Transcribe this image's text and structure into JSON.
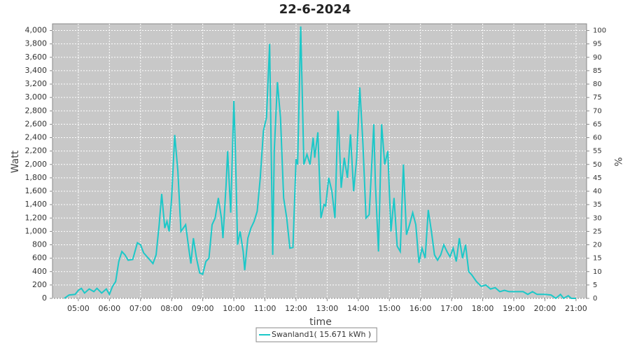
{
  "chart_data": {
    "type": "line",
    "title": "22-6-2024",
    "x_label": "time",
    "y_label": "Watt",
    "y2_label": "%",
    "xlim": [
      4.17,
      21.34
    ],
    "ylim": [
      0,
      4100
    ],
    "y2lim": [
      0,
      102.5
    ],
    "grid": true,
    "legend": "bottom",
    "xticks": [
      {
        "value": 5,
        "label": "05:00"
      },
      {
        "value": 6,
        "label": "06:00"
      },
      {
        "value": 7,
        "label": "07:00"
      },
      {
        "value": 8,
        "label": "08:00"
      },
      {
        "value": 9,
        "label": "09:00"
      },
      {
        "value": 10,
        "label": "10:00"
      },
      {
        "value": 11,
        "label": "11:00"
      },
      {
        "value": 12,
        "label": "12:00"
      },
      {
        "value": 13,
        "label": "13:00"
      },
      {
        "value": 14,
        "label": "14:00"
      },
      {
        "value": 15,
        "label": "15:00"
      },
      {
        "value": 16,
        "label": "16:00"
      },
      {
        "value": 17,
        "label": "17:00"
      },
      {
        "value": 18,
        "label": "18:00"
      },
      {
        "value": 19,
        "label": "19:00"
      },
      {
        "value": 20,
        "label": "20:00"
      },
      {
        "value": 21,
        "label": "21:00"
      }
    ],
    "yticks": [
      0,
      200,
      400,
      600,
      800,
      {
        "value": 1000,
        "label": "1,000"
      },
      {
        "value": 1200,
        "label": "1,200"
      },
      {
        "value": 1400,
        "label": "1,400"
      },
      {
        "value": 1600,
        "label": "1,600"
      },
      {
        "value": 1800,
        "label": "1,800"
      },
      {
        "value": 2000,
        "label": "2,000"
      },
      {
        "value": 2200,
        "label": "2,200"
      },
      {
        "value": 2400,
        "label": "2,400"
      },
      {
        "value": 2600,
        "label": "2,600"
      },
      {
        "value": 2800,
        "label": "2,800"
      },
      {
        "value": 3000,
        "label": "3,000"
      },
      {
        "value": 3200,
        "label": "3,200"
      },
      {
        "value": 3400,
        "label": "3,400"
      },
      {
        "value": 3600,
        "label": "3,600"
      },
      {
        "value": 3800,
        "label": "3,800"
      },
      {
        "value": 4000,
        "label": "4,000"
      }
    ],
    "y2ticks": [
      0,
      5,
      10,
      15,
      20,
      25,
      30,
      35,
      40,
      45,
      50,
      55,
      60,
      65,
      70,
      75,
      80,
      85,
      90,
      95,
      100
    ],
    "x": [
      4.55,
      4.7,
      4.9,
      5.0,
      5.1,
      5.2,
      5.35,
      5.5,
      5.6,
      5.75,
      5.9,
      6.0,
      6.1,
      6.2,
      6.3,
      6.4,
      6.5,
      6.6,
      6.75,
      6.9,
      7.0,
      7.1,
      7.25,
      7.4,
      7.5,
      7.6,
      7.68,
      7.78,
      7.85,
      7.92,
      8.0,
      8.1,
      8.2,
      8.3,
      8.45,
      8.55,
      8.62,
      8.7,
      8.8,
      8.9,
      9.0,
      9.1,
      9.2,
      9.3,
      9.4,
      9.5,
      9.6,
      9.65,
      9.75,
      9.8,
      9.9,
      10.0,
      10.05,
      10.12,
      10.2,
      10.3,
      10.35,
      10.45,
      10.55,
      10.65,
      10.75,
      10.85,
      10.95,
      11.05,
      11.15,
      11.25,
      11.3,
      11.4,
      11.5,
      11.6,
      11.7,
      11.8,
      11.9,
      12.0,
      12.05,
      12.15,
      12.25,
      12.35,
      12.45,
      12.55,
      12.6,
      12.7,
      12.8,
      12.9,
      12.95,
      13.05,
      13.15,
      13.25,
      13.35,
      13.45,
      13.55,
      13.65,
      13.75,
      13.85,
      13.95,
      14.05,
      14.15,
      14.25,
      14.35,
      14.5,
      14.55,
      14.65,
      14.75,
      14.85,
      14.95,
      15.05,
      15.15,
      15.25,
      15.35,
      15.45,
      15.55,
      15.65,
      15.75,
      15.85,
      15.95,
      16.05,
      16.15,
      16.25,
      16.35,
      16.45,
      16.55,
      16.65,
      16.75,
      16.85,
      16.95,
      17.05,
      17.15,
      17.25,
      17.35,
      17.45,
      17.55,
      17.65,
      17.8,
      17.95,
      18.1,
      18.25,
      18.4,
      18.55,
      18.7,
      18.85,
      19.0,
      19.3,
      19.45,
      19.6,
      19.75,
      20.0,
      20.2,
      20.35,
      20.5,
      20.6,
      20.75,
      20.85,
      21.0
    ],
    "series": [
      {
        "name": "Swanland1( 15.671 kWh )",
        "color": "#1cc8c8",
        "values": [
          0,
          50,
          60,
          120,
          150,
          80,
          140,
          100,
          150,
          80,
          140,
          60,
          180,
          250,
          550,
          700,
          650,
          570,
          580,
          830,
          800,
          680,
          600,
          520,
          650,
          1100,
          1560,
          1050,
          1150,
          1000,
          1500,
          2440,
          1900,
          1000,
          1100,
          750,
          520,
          900,
          600,
          380,
          360,
          550,
          600,
          1100,
          1200,
          1500,
          1200,
          900,
          1700,
          2200,
          1280,
          2950,
          2200,
          800,
          1000,
          700,
          420,
          900,
          1050,
          1150,
          1300,
          1800,
          2500,
          2700,
          3800,
          650,
          2200,
          3230,
          2700,
          1500,
          1200,
          750,
          760,
          2080,
          2000,
          4060,
          2000,
          2150,
          2000,
          2400,
          2100,
          2480,
          1200,
          1400,
          1380,
          1800,
          1600,
          1200,
          2800,
          1650,
          2100,
          1800,
          2450,
          1600,
          2100,
          3150,
          2300,
          1200,
          1250,
          2600,
          1700,
          700,
          2600,
          2000,
          2200,
          1000,
          1500,
          780,
          700,
          2000,
          950,
          1100,
          1280,
          1100,
          530,
          750,
          600,
          1320,
          1000,
          650,
          570,
          650,
          800,
          700,
          620,
          750,
          550,
          900,
          600,
          800,
          400,
          350,
          250,
          180,
          200,
          140,
          160,
          100,
          120,
          100,
          100,
          100,
          60,
          100,
          60,
          60,
          50,
          0,
          60,
          0,
          40,
          0,
          0
        ]
      }
    ]
  }
}
